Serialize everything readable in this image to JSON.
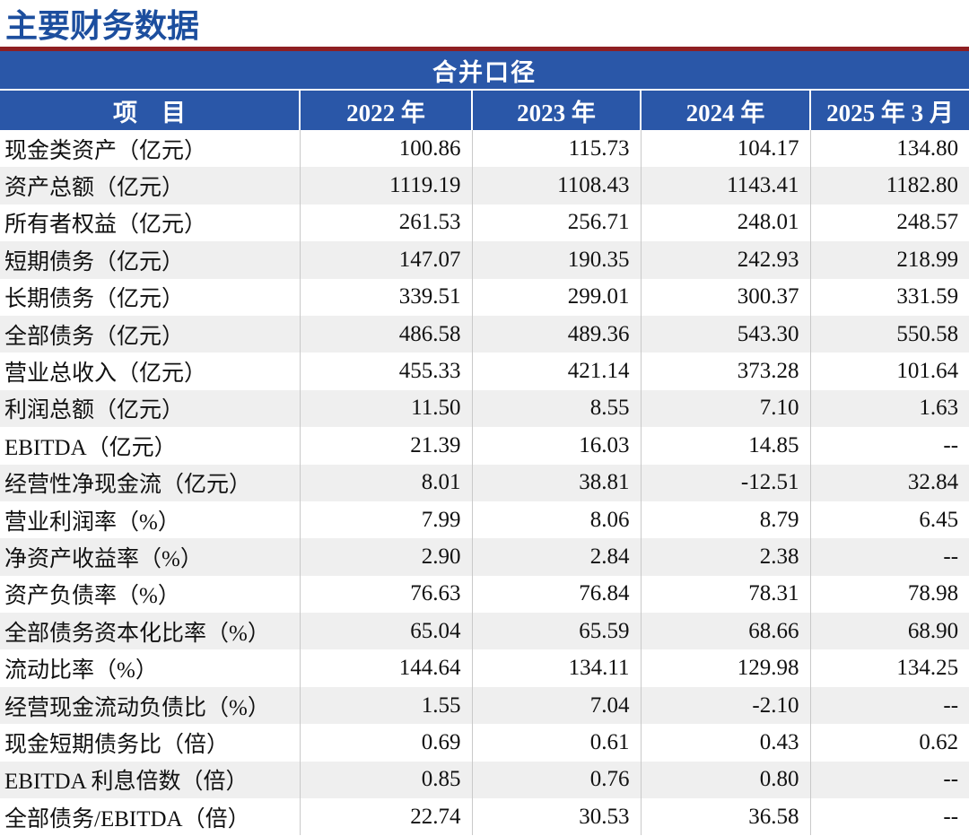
{
  "page": {
    "title": "主要财务数据"
  },
  "table": {
    "group_header": "合并口径",
    "columns": [
      "项　目",
      "2022 年",
      "2023 年",
      "2024 年",
      "2025 年 3 月"
    ],
    "rows": [
      {
        "label": "现金类资产（亿元）",
        "values": [
          "100.86",
          "115.73",
          "104.17",
          "134.80"
        ]
      },
      {
        "label": "资产总额（亿元）",
        "values": [
          "1119.19",
          "1108.43",
          "1143.41",
          "1182.80"
        ]
      },
      {
        "label": "所有者权益（亿元）",
        "values": [
          "261.53",
          "256.71",
          "248.01",
          "248.57"
        ]
      },
      {
        "label": "短期债务（亿元）",
        "values": [
          "147.07",
          "190.35",
          "242.93",
          "218.99"
        ]
      },
      {
        "label": "长期债务（亿元）",
        "values": [
          "339.51",
          "299.01",
          "300.37",
          "331.59"
        ]
      },
      {
        "label": "全部债务（亿元）",
        "values": [
          "486.58",
          "489.36",
          "543.30",
          "550.58"
        ]
      },
      {
        "label": "营业总收入（亿元）",
        "values": [
          "455.33",
          "421.14",
          "373.28",
          "101.64"
        ]
      },
      {
        "label": "利润总额（亿元）",
        "values": [
          "11.50",
          "8.55",
          "7.10",
          "1.63"
        ]
      },
      {
        "label": "EBITDA（亿元）",
        "values": [
          "21.39",
          "16.03",
          "14.85",
          "--"
        ]
      },
      {
        "label": "经营性净现金流（亿元）",
        "values": [
          "8.01",
          "38.81",
          "-12.51",
          "32.84"
        ]
      },
      {
        "label": "营业利润率（%）",
        "values": [
          "7.99",
          "8.06",
          "8.79",
          "6.45"
        ]
      },
      {
        "label": "净资产收益率（%）",
        "values": [
          "2.90",
          "2.84",
          "2.38",
          "--"
        ]
      },
      {
        "label": "资产负债率（%）",
        "values": [
          "76.63",
          "76.84",
          "78.31",
          "78.98"
        ]
      },
      {
        "label": "全部债务资本化比率（%）",
        "values": [
          "65.04",
          "65.59",
          "68.66",
          "68.90"
        ]
      },
      {
        "label": "流动比率（%）",
        "values": [
          "144.64",
          "134.11",
          "129.98",
          "134.25"
        ]
      },
      {
        "label": "经营现金流动负债比（%）",
        "values": [
          "1.55",
          "7.04",
          "-2.10",
          "--"
        ]
      },
      {
        "label": "现金短期债务比（倍）",
        "values": [
          "0.69",
          "0.61",
          "0.43",
          "0.62"
        ]
      },
      {
        "label": "EBITDA 利息倍数（倍）",
        "values": [
          "0.85",
          "0.76",
          "0.80",
          "--"
        ]
      },
      {
        "label": "全部债务/EBITDA（倍）",
        "values": [
          "22.74",
          "30.53",
          "36.58",
          "--"
        ]
      }
    ]
  },
  "colors": {
    "title_blue": "#1C4E9E",
    "header_blue": "#2A57A8",
    "divider_red": "#8E1F22",
    "stripe_gray": "#EFEFEF",
    "grid_gray": "#C9C9C9"
  }
}
